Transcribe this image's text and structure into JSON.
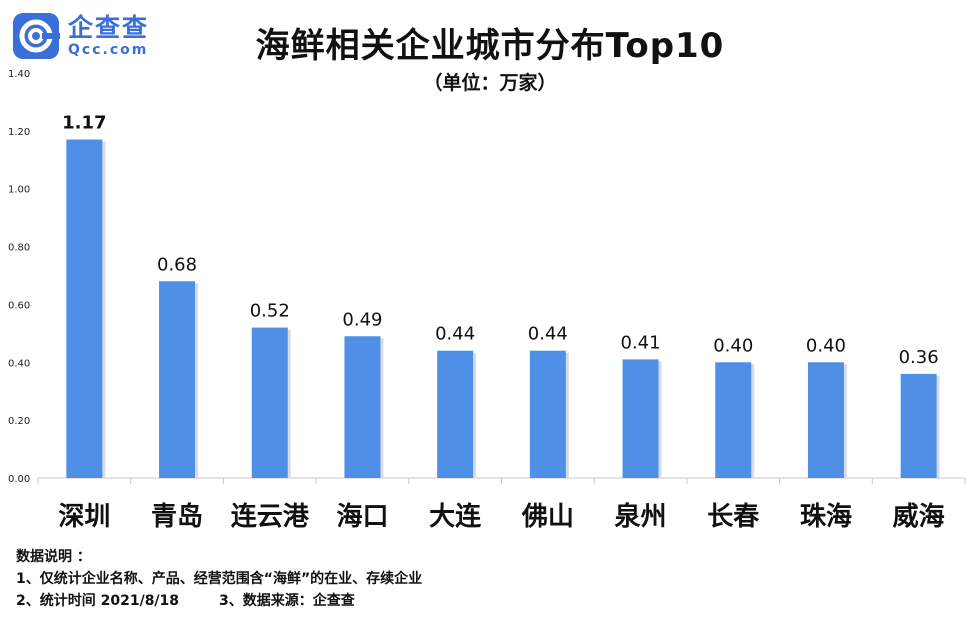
{
  "logo": {
    "cn": "企查查",
    "en": "Qcc.com",
    "brand_color": "#3a6fd8"
  },
  "title": "海鲜相关企业城市分布Top10",
  "subtitle": "（单位：万家）",
  "chart_data": {
    "type": "bar",
    "categories": [
      "深圳",
      "青岛",
      "连云港",
      "海口",
      "大连",
      "佛山",
      "泉州",
      "长春",
      "珠海",
      "威海"
    ],
    "values": [
      1.17,
      0.68,
      0.52,
      0.49,
      0.44,
      0.44,
      0.41,
      0.4,
      0.4,
      0.36
    ],
    "value_labels": [
      "1.17",
      "0.68",
      "0.52",
      "0.49",
      "0.44",
      "0.44",
      "0.41",
      "0.40",
      "0.40",
      "0.36"
    ],
    "ylim": [
      0,
      1.4
    ],
    "yticks": [
      "0.00",
      "0.20",
      "0.40",
      "0.60",
      "0.80",
      "1.00",
      "1.20",
      "1.40"
    ],
    "bar_color": "#4f8fe6",
    "grid": false
  },
  "notes": {
    "heading": "数据说明 ：",
    "line1": "1、仅统计企业名称、产品、经营范围含“海鲜”的在业、存续企业",
    "line2a": "2、统计时间 2021/8/18",
    "line2b": "3、数据来源：企查查"
  }
}
